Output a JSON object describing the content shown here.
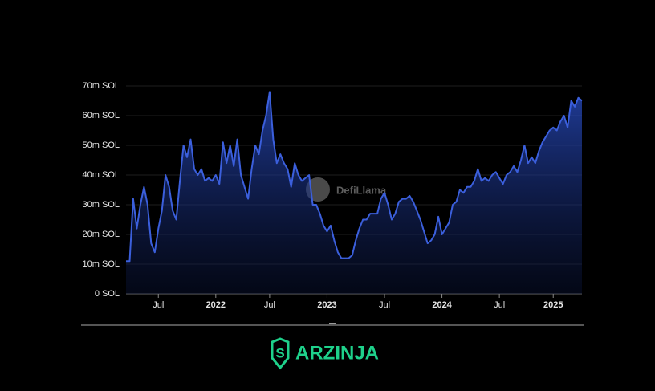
{
  "chart_data": {
    "type": "area",
    "watermark": "DefiLlama",
    "brand": "ARZINJA",
    "color": "#3b5fdc",
    "grid": true,
    "ylim": [
      0,
      70
    ],
    "yticks": [
      {
        "value": 0,
        "label": "0 SOL"
      },
      {
        "value": 10,
        "label": "10m SOL"
      },
      {
        "value": 20,
        "label": "20m SOL"
      },
      {
        "value": 30,
        "label": "30m SOL"
      },
      {
        "value": 40,
        "label": "40m SOL"
      },
      {
        "value": 50,
        "label": "50m SOL"
      },
      {
        "value": 60,
        "label": "60m SOL"
      },
      {
        "value": 70,
        "label": "70m SOL"
      }
    ],
    "categories": [
      null,
      null,
      null,
      null,
      null,
      null,
      null,
      null,
      null,
      "Jul",
      null,
      null,
      null,
      null,
      null,
      null,
      null,
      null,
      null,
      null,
      null,
      null,
      null,
      null,
      null,
      "2022",
      null,
      null,
      null,
      null,
      null,
      null,
      null,
      null,
      null,
      null,
      null,
      null,
      null,
      null,
      "Jul",
      null,
      null,
      null,
      null,
      null,
      null,
      null,
      null,
      null,
      null,
      null,
      null,
      null,
      null,
      null,
      "2023",
      null,
      null,
      null,
      null,
      null,
      null,
      null,
      null,
      null,
      null,
      null,
      null,
      null,
      null,
      null,
      "Jul",
      null,
      null,
      null,
      null,
      null,
      null,
      null,
      null,
      null,
      null,
      null,
      null,
      null,
      null,
      null,
      "2024",
      null,
      null,
      null,
      null,
      null,
      null,
      null,
      null,
      null,
      null,
      null,
      null,
      null,
      null,
      null,
      "Jul",
      null,
      null,
      null,
      null,
      null,
      null,
      null,
      null,
      null,
      null,
      null,
      null,
      null,
      null,
      "2025",
      null,
      null,
      null,
      null,
      null,
      null,
      null,
      null
    ],
    "series": [
      {
        "values": [
          11,
          11,
          32,
          22,
          30,
          36,
          30,
          17,
          14,
          22,
          28,
          40,
          36,
          28,
          25,
          38,
          50,
          46,
          52,
          42,
          40,
          42,
          38,
          39,
          38,
          40,
          37,
          51,
          44,
          50,
          43,
          52,
          40,
          36,
          32,
          42,
          50,
          47,
          55,
          60,
          68,
          52,
          44,
          47,
          44,
          42,
          36,
          44,
          40,
          38,
          39,
          40,
          30,
          30,
          27,
          23,
          21,
          23,
          18,
          14,
          12,
          12,
          12,
          13,
          18,
          22,
          25,
          25,
          27,
          27,
          27,
          32,
          34,
          30,
          25,
          27,
          31,
          32,
          32,
          33,
          31,
          28,
          25,
          21,
          17,
          18,
          20,
          26,
          20,
          22,
          24,
          30,
          31,
          35,
          34,
          36,
          36,
          38,
          42,
          38,
          39,
          38,
          40,
          41,
          39,
          37,
          40,
          41,
          43,
          41,
          45,
          50,
          44,
          46,
          44,
          48,
          51,
          53,
          55,
          56,
          55,
          58,
          60,
          56,
          65,
          63,
          66,
          65
        ]
      }
    ]
  }
}
